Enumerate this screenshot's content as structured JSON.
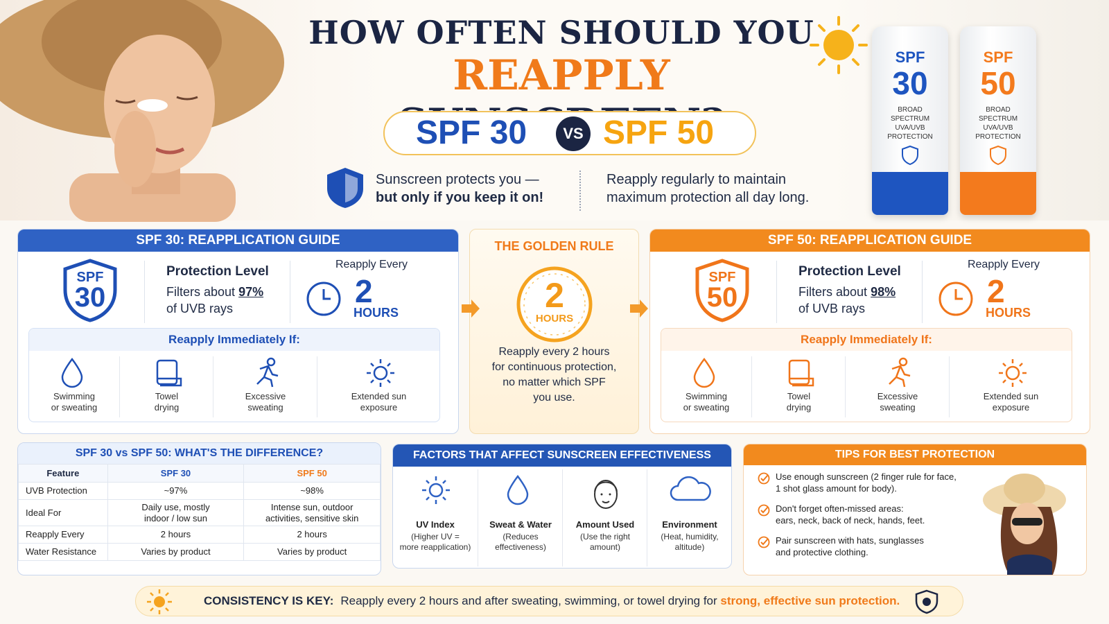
{
  "header": {
    "title_line1": "HOW OFTEN SHOULD YOU",
    "title_highlight": "REAPPLY",
    "title_rest": "SUNSCREEN?",
    "spf30": "SPF 30",
    "vs": "VS",
    "spf50": "SPF 50",
    "tagline_left": [
      "Sunscreen protects you —",
      "but only if you keep it on!"
    ],
    "tagline_right": [
      "Reapply regularly to maintain",
      "maximum protection all day long."
    ]
  },
  "tubes": [
    {
      "spf": "SPF",
      "number": "30",
      "text": [
        "BROAD",
        "SPECTRUM",
        "UVA/UVB",
        "PROTECTION"
      ]
    },
    {
      "spf": "SPF",
      "number": "50",
      "text": [
        "BROAD",
        "SPECTRUM",
        "UVA/UVB",
        "PROTECTION"
      ]
    }
  ],
  "guides": [
    {
      "title": "SPF 30: REAPPLICATION GUIDE",
      "badge_spf": "SPF",
      "badge_number": "30",
      "protection_title": "Protection Level",
      "filters_prefix": "Filters about",
      "filters_value": "97%",
      "filters_suffix": "of UVB rays",
      "reapply_label": "Reapply Every",
      "reapply_number": "2",
      "reapply_unit": "HOURS",
      "immediately_title": "Reapply Immediately If:",
      "triggers": [
        [
          "Swimming",
          "or sweating"
        ],
        [
          "Towel",
          "drying"
        ],
        [
          "Excessive",
          "sweating"
        ],
        [
          "Extended sun",
          "exposure"
        ]
      ]
    },
    {
      "title": "SPF 50: REAPPLICATION GUIDE",
      "badge_spf": "SPF",
      "badge_number": "50",
      "protection_title": "Protection Level",
      "filters_prefix": "Filters about",
      "filters_value": "98%",
      "filters_suffix": "of UVB rays",
      "reapply_label": "Reapply Every",
      "reapply_number": "2",
      "reapply_unit": "HOURS",
      "immediately_title": "Reapply Immediately If:",
      "triggers": [
        [
          "Swimming",
          "or sweating"
        ],
        [
          "Towel",
          "drying"
        ],
        [
          "Excessive",
          "sweating"
        ],
        [
          "Extended sun",
          "exposure"
        ]
      ]
    }
  ],
  "golden_rule": {
    "title": "THE GOLDEN RULE",
    "number": "2",
    "unit": "HOURS",
    "text": [
      "Reapply every 2 hours",
      "for continuous protection,",
      "no matter which SPF",
      "you use."
    ]
  },
  "comparison": {
    "title": "SPF 30 vs SPF 50: WHAT'S THE DIFFERENCE?",
    "header": [
      "Feature",
      "SPF 30",
      "SPF 50"
    ],
    "rows": [
      [
        [
          "UVB Protection"
        ],
        [
          "~97%"
        ],
        [
          "~98%"
        ]
      ],
      [
        [
          "Ideal For"
        ],
        [
          "Daily use, mostly",
          "indoor / low sun"
        ],
        [
          "Intense sun, outdoor",
          "activities, sensitive skin"
        ]
      ],
      [
        [
          "Reapply Every"
        ],
        [
          "2 hours"
        ],
        [
          "2 hours"
        ]
      ],
      [
        [
          "Water Resistance"
        ],
        [
          "Varies by product"
        ],
        [
          "Varies by product"
        ]
      ]
    ]
  },
  "factors": {
    "title": "FACTORS THAT AFFECT SUNSCREEN EFFECTIVENESS",
    "items": [
      {
        "label": "UV Index",
        "note": [
          "(Higher UV =",
          "more reapplication)"
        ]
      },
      {
        "label": "Sweat & Water",
        "note": [
          "(Reduces",
          "effectiveness)"
        ]
      },
      {
        "label": "Amount Used",
        "note": [
          "(Use the right",
          "amount)"
        ]
      },
      {
        "label": "Environment",
        "note": [
          "(Heat, humidity,",
          "altitude)"
        ]
      }
    ]
  },
  "tips": {
    "title": "TIPS FOR BEST PROTECTION",
    "items": [
      [
        "Use enough sunscreen (2 finger rule for face,",
        "1 shot glass amount for body)."
      ],
      [
        "Don't forget often-missed areas:",
        "ears, neck, back of neck, hands, feet."
      ],
      [
        "Pair sunscreen with hats, sunglasses",
        "and protective clothing."
      ]
    ]
  },
  "footer": {
    "label": "CONSISTENCY IS KEY:",
    "text": "Reapply every 2 hours and after sweating, swimming, or towel drying for",
    "highlight": "strong, effective sun protection."
  }
}
